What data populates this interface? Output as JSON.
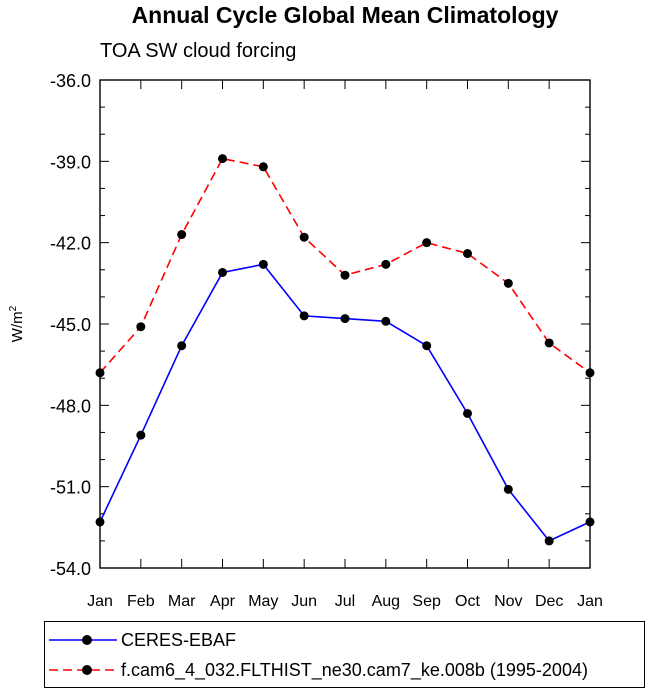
{
  "title": "Annual Cycle Global Mean Climatology",
  "subtitle": "TOA SW cloud forcing",
  "chart_data": {
    "type": "line",
    "title": "Annual Cycle Global Mean Climatology",
    "subtitle": "TOA SW cloud forcing",
    "ylabel": "W/m",
    "ylabel_sup": "2",
    "xlabel": "",
    "categories": [
      "Jan",
      "Feb",
      "Mar",
      "Apr",
      "May",
      "Jun",
      "Jul",
      "Aug",
      "Sep",
      "Oct",
      "Nov",
      "Dec",
      "Jan"
    ],
    "ylim": [
      -54.0,
      -36.0
    ],
    "yticks": [
      -36.0,
      -39.0,
      -42.0,
      -45.0,
      -48.0,
      -51.0,
      -54.0
    ],
    "ytick_labels": [
      "-36.0",
      "-39.0",
      "-42.0",
      "-45.0",
      "-48.0",
      "-51.0",
      "-54.0"
    ],
    "grid": false,
    "legend_position": "bottom",
    "series": [
      {
        "name": "CERES-EBAF",
        "color": "#0000ff",
        "dash": "solid",
        "values": [
          -52.3,
          -49.1,
          -45.8,
          -43.1,
          -42.8,
          -44.7,
          -44.8,
          -44.9,
          -45.8,
          -48.3,
          -51.1,
          -53.0,
          -52.3
        ]
      },
      {
        "name": "f.cam6_4_032.FLTHIST_ne30.cam7_ke.008b (1995-2004)",
        "color": "#ff0000",
        "dash": "dashed",
        "values": [
          -46.8,
          -45.1,
          -41.7,
          -38.9,
          -39.2,
          -41.8,
          -43.2,
          -42.8,
          -42.0,
          -42.4,
          -43.5,
          -45.7,
          -46.8
        ]
      }
    ]
  }
}
